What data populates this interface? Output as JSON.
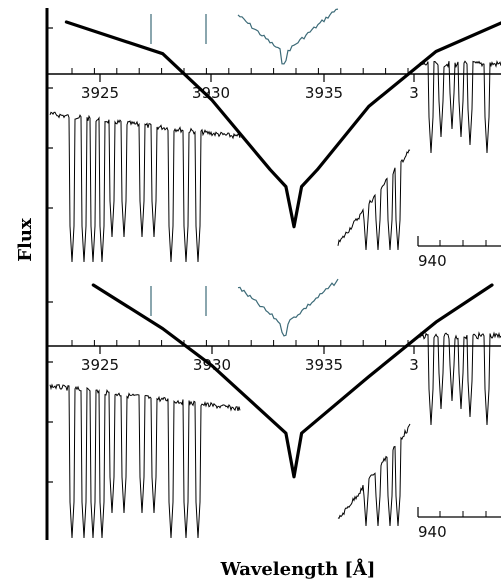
{
  "chart_data": {
    "type": "line",
    "title": "",
    "xlabel": "Wavelength [Å]",
    "ylabel": "Flux",
    "panels": [
      {
        "name": "upper",
        "x_ticks": [
          "3925",
          "3930",
          "3935",
          "3"
        ],
        "inset_ticks": [
          "940"
        ],
        "profile_points": [
          [
            3923.5,
            1.0
          ],
          [
            3927.8,
            0.85
          ],
          [
            3930,
            0.63
          ],
          [
            3932.6,
            0.3
          ],
          [
            3933.3,
            0.22
          ],
          [
            3933.66,
            0.03
          ],
          [
            3934.0,
            0.22
          ],
          [
            3934.7,
            0.3
          ],
          [
            3937,
            0.6
          ],
          [
            3940,
            0.86
          ],
          [
            3943,
            1.0
          ]
        ]
      },
      {
        "name": "lower",
        "x_ticks": [
          "3925",
          "3930",
          "3935",
          "3"
        ],
        "inset_ticks": [
          "940"
        ],
        "profile_points": [
          [
            3924.7,
            1.0
          ],
          [
            3927.8,
            0.8
          ],
          [
            3930,
            0.63
          ],
          [
            3933.3,
            0.32
          ],
          [
            3933.66,
            0.12
          ],
          [
            3934.0,
            0.32
          ],
          [
            3937,
            0.58
          ],
          [
            3940,
            0.83
          ],
          [
            3942.5,
            1.0
          ]
        ]
      }
    ],
    "colors": {
      "profile": "#000000",
      "spectrum": "#000000",
      "inset": "#3d6b78"
    }
  }
}
